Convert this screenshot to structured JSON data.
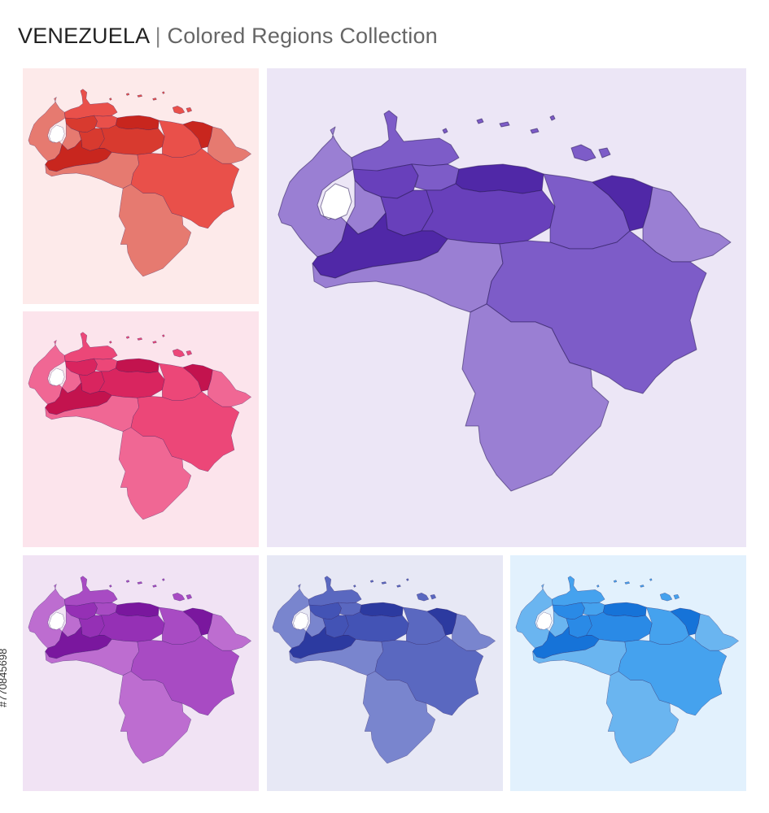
{
  "header": {
    "country": "VENEZUELA",
    "separator": "|",
    "subtitle": "Colored Regions Collection"
  },
  "stock_id": "#770845698",
  "panels": [
    {
      "id": "red",
      "palette": "red",
      "background": "#fdeaea",
      "fills": [
        "#e67a70",
        "#e9504a",
        "#d83a2f",
        "#c8261e"
      ]
    },
    {
      "id": "violet",
      "palette": "violet",
      "background": "#ece6f6",
      "fills": [
        "#9a7fd3",
        "#7d5cc8",
        "#6840bb",
        "#5028a7"
      ]
    },
    {
      "id": "pink",
      "palette": "pink",
      "background": "#fce4ec",
      "fills": [
        "#f06794",
        "#ec4778",
        "#d9255f",
        "#c3134e"
      ]
    },
    {
      "id": "purple",
      "palette": "purple",
      "background": "#f1e3f4",
      "fills": [
        "#bd6dd0",
        "#a84bc3",
        "#9530b5",
        "#7a179e"
      ]
    },
    {
      "id": "indigo",
      "palette": "indigo",
      "background": "#e7e8f5",
      "fills": [
        "#7985ce",
        "#5a68c0",
        "#4353b5",
        "#2c3aa0"
      ]
    },
    {
      "id": "blue",
      "palette": "blue",
      "background": "#e2f1fd",
      "fills": [
        "#6ab5f0",
        "#45a2ee",
        "#2a8ae6",
        "#1673d8"
      ]
    }
  ]
}
